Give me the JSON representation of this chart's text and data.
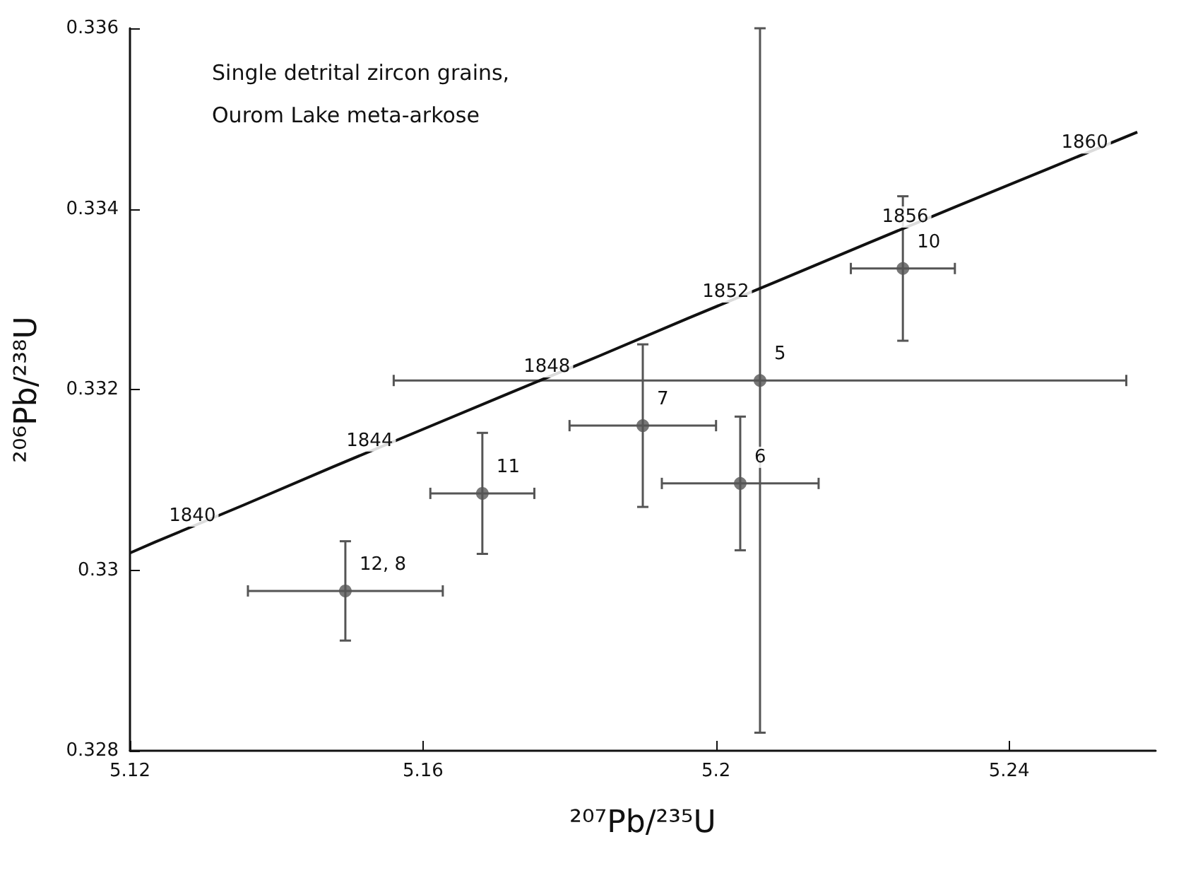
{
  "chart_data": {
    "type": "scatter",
    "xlabel": "²⁰⁷Pb/²³⁵U",
    "ylabel": "²⁰⁶Pb/²³⁸U",
    "annotations": [
      "Single detrital zircon grains,",
      "Ourom Lake meta-arkose",
      {
        "text": "1840",
        "x": 5.1234,
        "y": 0.33031
      },
      {
        "text": "1844",
        "x": 5.1476,
        "y": 0.33114
      },
      {
        "text": "1848",
        "x": 5.1718,
        "y": 0.33196
      },
      {
        "text": "1852",
        "x": 5.1962,
        "y": 0.33279
      },
      {
        "text": "1856",
        "x": 5.2207,
        "y": 0.33362
      },
      {
        "text": "1860",
        "x": 5.2452,
        "y": 0.33444
      },
      {
        "text": "12, 8",
        "x": 5.1494,
        "y": 0.32977
      },
      {
        "text": "11",
        "x": 5.1681,
        "y": 0.33085
      },
      {
        "text": "7",
        "x": 5.19,
        "y": 0.3316
      },
      {
        "text": "6",
        "x": 5.2033,
        "y": 0.33096
      },
      {
        "text": "10",
        "x": 5.2255,
        "y": 0.33334
      },
      {
        "text": "5",
        "x": 5.206,
        "y": 0.3321
      }
    ],
    "series": [
      {
        "type": "line",
        "color": "#111111",
        "marker": "none",
        "line_style": "solid",
        "x": [
          5.12,
          5.1234,
          5.1355,
          5.1476,
          5.1597,
          5.1718,
          5.184,
          5.1962,
          5.2084,
          5.2207,
          5.2329,
          5.2452,
          5.2575
        ],
        "values": [
          0.33019,
          0.33031,
          0.33072,
          0.33114,
          0.33155,
          0.33196,
          0.33237,
          0.33279,
          0.3332,
          0.33362,
          0.33403,
          0.33444,
          0.33485
        ]
      },
      {
        "color": "#555555",
        "marker": "circle",
        "x": [
          5.1494,
          5.1681,
          5.19,
          5.2033,
          5.2255,
          5.206
        ],
        "values": [
          0.32977,
          0.33085,
          0.3316,
          0.33096,
          0.33334,
          0.3321
        ],
        "xerrors": [
          0.0133,
          0.0071,
          0.01,
          0.0107,
          0.0071,
          0.05
        ],
        "errors": [
          0.00055,
          0.00067,
          0.0009,
          0.00074,
          0.0008,
          0.0039
        ]
      }
    ],
    "xlim": [
      5.12,
      5.26
    ],
    "xticks": [
      5.12,
      5.16,
      5.2,
      5.24
    ],
    "ylim": [
      0.328,
      0.336
    ],
    "yticks": [
      0.328,
      0.33,
      0.332,
      0.334,
      0.336
    ],
    "grid": false
  }
}
